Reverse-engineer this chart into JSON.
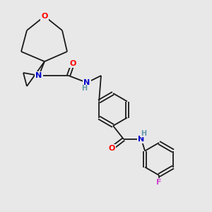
{
  "background_color": "#e8e8e8",
  "bond_color": "#1a1a1a",
  "atom_colors": {
    "O": "#ff0000",
    "N": "#0000cc",
    "F": "#cc44cc",
    "H_label": "#6699aa",
    "C": "#1a1a1a"
  },
  "title": "",
  "figsize": [
    3.0,
    3.0
  ],
  "dpi": 100
}
